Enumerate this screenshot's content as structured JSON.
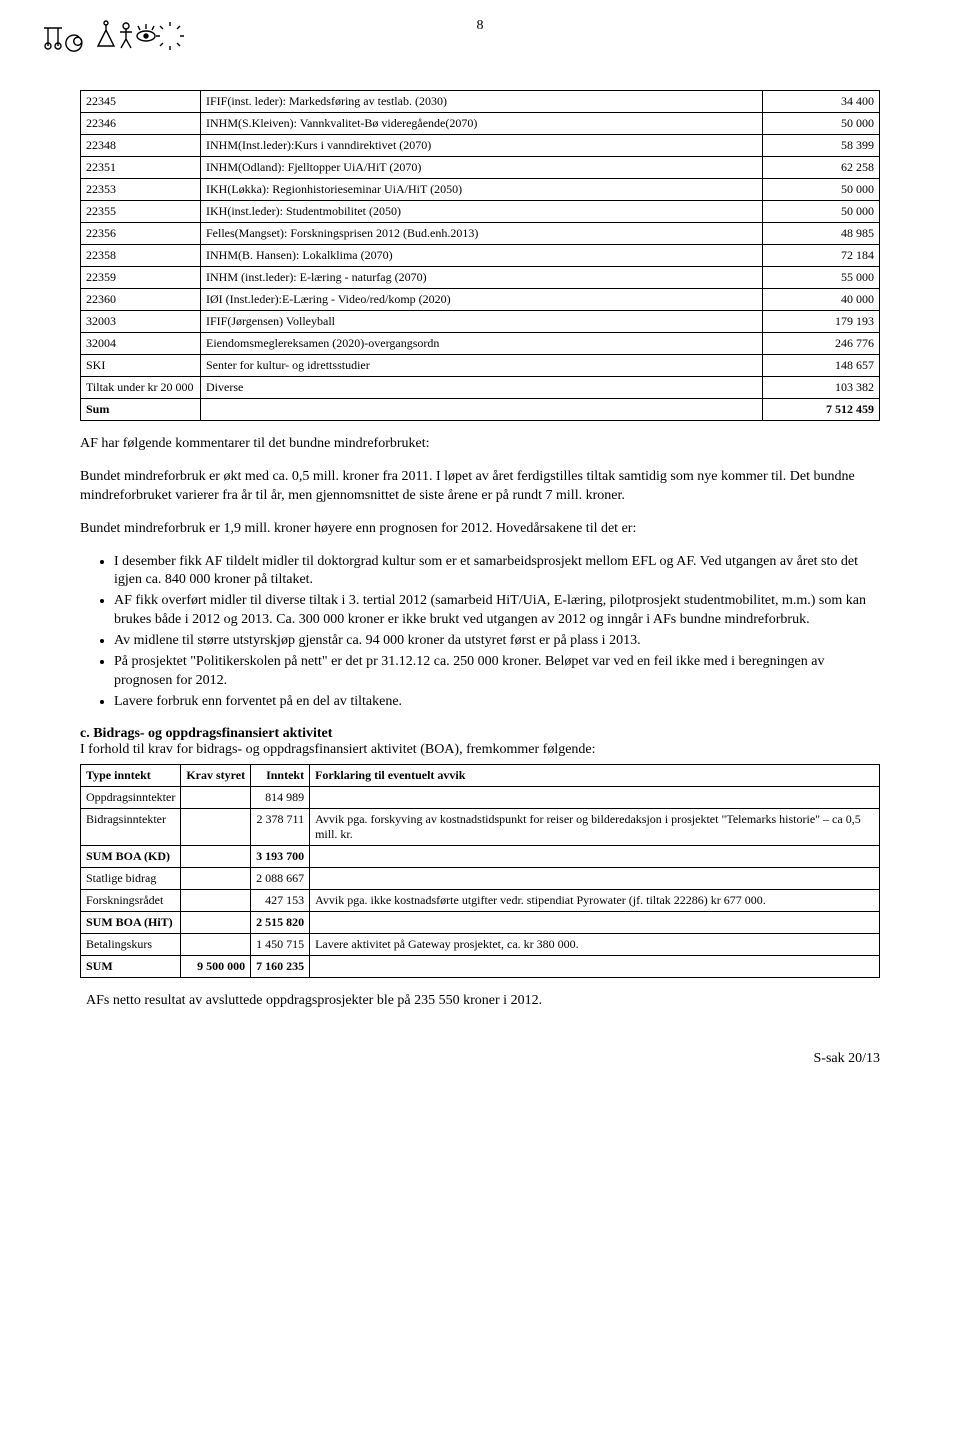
{
  "page_number": "8",
  "footer": "S-sak 20/13",
  "table1": {
    "rows": [
      {
        "code": "22345",
        "desc": "IFIF(inst. leder): Markedsføring av testlab. (2030)",
        "val": "34 400"
      },
      {
        "code": "22346",
        "desc": "INHM(S.Kleiven): Vannkvalitet-Bø videregående(2070)",
        "val": "50 000"
      },
      {
        "code": "22348",
        "desc": "INHM(Inst.leder):Kurs i vanndirektivet (2070)",
        "val": "58 399"
      },
      {
        "code": "22351",
        "desc": "INHM(Odland): Fjelltopper UiA/HiT (2070)",
        "val": "62 258"
      },
      {
        "code": "22353",
        "desc": "IKH(Løkka): Regionhistorieseminar UiA/HiT (2050)",
        "val": "50 000"
      },
      {
        "code": "22355",
        "desc": "IKH(inst.leder): Studentmobilitet (2050)",
        "val": "50 000"
      },
      {
        "code": "22356",
        "desc": "Felles(Mangset): Forskningsprisen 2012 (Bud.enh.2013)",
        "val": "48 985"
      },
      {
        "code": "22358",
        "desc": "INHM(B. Hansen): Lokalklima (2070)",
        "val": "72 184"
      },
      {
        "code": "22359",
        "desc": "INHM (inst.leder): E-læring - naturfag (2070)",
        "val": "55 000"
      },
      {
        "code": "22360",
        "desc": "IØI (Inst.leder):E-Læring -  Video/red/komp (2020)",
        "val": "40 000"
      },
      {
        "code": "32003",
        "desc": "IFIF(Jørgensen) Volleyball",
        "val": "179 193"
      },
      {
        "code": "32004",
        "desc": "Eiendomsmeglereksamen (2020)-overgangsordn",
        "val": "246 776"
      },
      {
        "code": "SKI",
        "desc": "Senter for kultur- og idrettsstudier",
        "val": "148 657"
      },
      {
        "code": "Tiltak under kr 20 000",
        "desc": "Diverse",
        "val": "103 382"
      }
    ],
    "sum_label": "Sum",
    "sum_val": "7 512 459"
  },
  "para1": "AF har følgende kommentarer til det bundne mindreforbruket:",
  "para2": "Bundet mindreforbruk er økt med ca. 0,5 mill. kroner fra 2011. I løpet av året ferdigstilles tiltak samtidig som nye kommer til. Det bundne mindreforbruket varierer fra år til år, men gjennomsnittet de siste årene er på rundt 7 mill. kroner.",
  "para3": "Bundet mindreforbruk er 1,9 mill. kroner høyere enn prognosen for 2012. Hovedårsakene til det er:",
  "bullets": [
    "I desember fikk AF tildelt midler til doktorgrad kultur som er et samarbeidsprosjekt mellom EFL og AF. Ved utgangen av året sto det igjen ca. 840 000 kroner på tiltaket.",
    "AF fikk overført midler til diverse tiltak i 3. tertial 2012 (samarbeid HiT/UiA, E-læring, pilotprosjekt studentmobilitet, m.m.) som kan brukes både i 2012 og 2013. Ca. 300 000 kroner er ikke brukt ved utgangen av 2012 og inngår i AFs bundne mindreforbruk.",
    "Av midlene til større utstyrskjøp gjenstår ca. 94 000 kroner da utstyret først er på plass i 2013.",
    " På prosjektet \"Politikerskolen på nett\" er det pr 31.12.12 ca. 250 000 kroner. Beløpet var ved en feil ikke med i beregningen av prognosen for 2012.",
    "Lavere forbruk enn forventet på en del av tiltakene."
  ],
  "sectionC": {
    "head": "c.    Bidrags- og oppdragsfinansiert aktivitet",
    "intro": "I forhold til krav for bidrags- og oppdragsfinansiert aktivitet (BOA), fremkommer følgende:"
  },
  "boa": {
    "headers": [
      "Type inntekt",
      "Krav styret",
      "Inntekt",
      "Forklaring til eventuelt avvik"
    ],
    "rows": [
      {
        "label": "Oppdragsinntekter",
        "krav": "",
        "inntekt": "814 989",
        "expl": "",
        "bold": false
      },
      {
        "label": "Bidragsinntekter",
        "krav": "",
        "inntekt": "2 378 711",
        "expl": "Avvik pga. forskyving av kostnadstidspunkt for reiser og bilderedaksjon i prosjektet \"Telemarks historie\" – ca 0,5 mill. kr.",
        "bold": false
      },
      {
        "label": "SUM BOA (KD)",
        "krav": "",
        "inntekt": "3 193 700",
        "expl": "",
        "bold": true
      },
      {
        "label": "Statlige bidrag",
        "krav": "",
        "inntekt": "2 088 667",
        "expl": "",
        "bold": false
      },
      {
        "label": "Forskningsrådet",
        "krav": "",
        "inntekt": "427 153",
        "expl": "Avvik pga. ikke kostnadsførte utgifter vedr. stipendiat Pyrowater (jf. tiltak 22286) kr 677 000.",
        "bold": false
      },
      {
        "label": "SUM BOA (HiT)",
        "krav": "",
        "inntekt": "2 515 820",
        "expl": "",
        "bold": true
      },
      {
        "label": "Betalingskurs",
        "krav": "",
        "inntekt": "1 450 715",
        "expl": "Lavere aktivitet på Gateway prosjektet, ca. kr 380 000.",
        "bold": false
      },
      {
        "label": "SUM",
        "krav": "9 500 000",
        "inntekt": "7 160 235",
        "expl": "",
        "bold": true
      }
    ]
  },
  "para4": "AFs netto resultat av avsluttede oppdragsprosjekter ble på 235 550 kroner i 2012."
}
